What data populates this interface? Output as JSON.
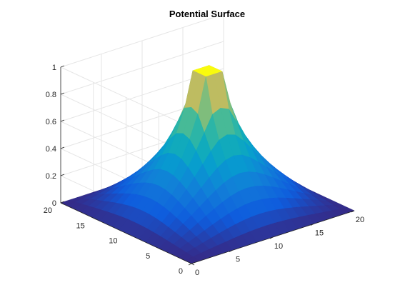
{
  "chart_data": {
    "type": "surface",
    "title": "Potential Surface",
    "xlabel": "",
    "ylabel": "",
    "zlabel": "",
    "xlim": [
      0,
      20
    ],
    "ylim": [
      0,
      20
    ],
    "zlim": [
      0,
      1
    ],
    "grid": true,
    "colormap": "parula",
    "x_ticks": [
      0,
      5,
      10,
      15,
      20
    ],
    "y_ticks": [
      0,
      5,
      10,
      15,
      20
    ],
    "z_ticks": [
      0,
      0.2,
      0.4,
      0.6,
      0.8,
      1
    ],
    "x_tick_labels": [
      "0",
      "5",
      "10",
      "15",
      "20"
    ],
    "y_tick_labels": [
      "0",
      "5",
      "10",
      "15",
      "20"
    ],
    "z_tick_labels": [
      "0",
      "0.2",
      "0.4",
      "0.6",
      "0.8",
      "1"
    ],
    "grid_size": 21,
    "plateau": {
      "x_range": [
        9,
        11
      ],
      "y_range": [
        9,
        11
      ],
      "value": 1
    },
    "surface_description": "Potential equals 1 on central square plateau (x,y in [9,11]) and decays to 0 at boundary x=0, x=20, y=0, y=20"
  },
  "colors": {
    "background": "#ffffff",
    "grid": "#e6e6e6",
    "axis": "#262626"
  }
}
